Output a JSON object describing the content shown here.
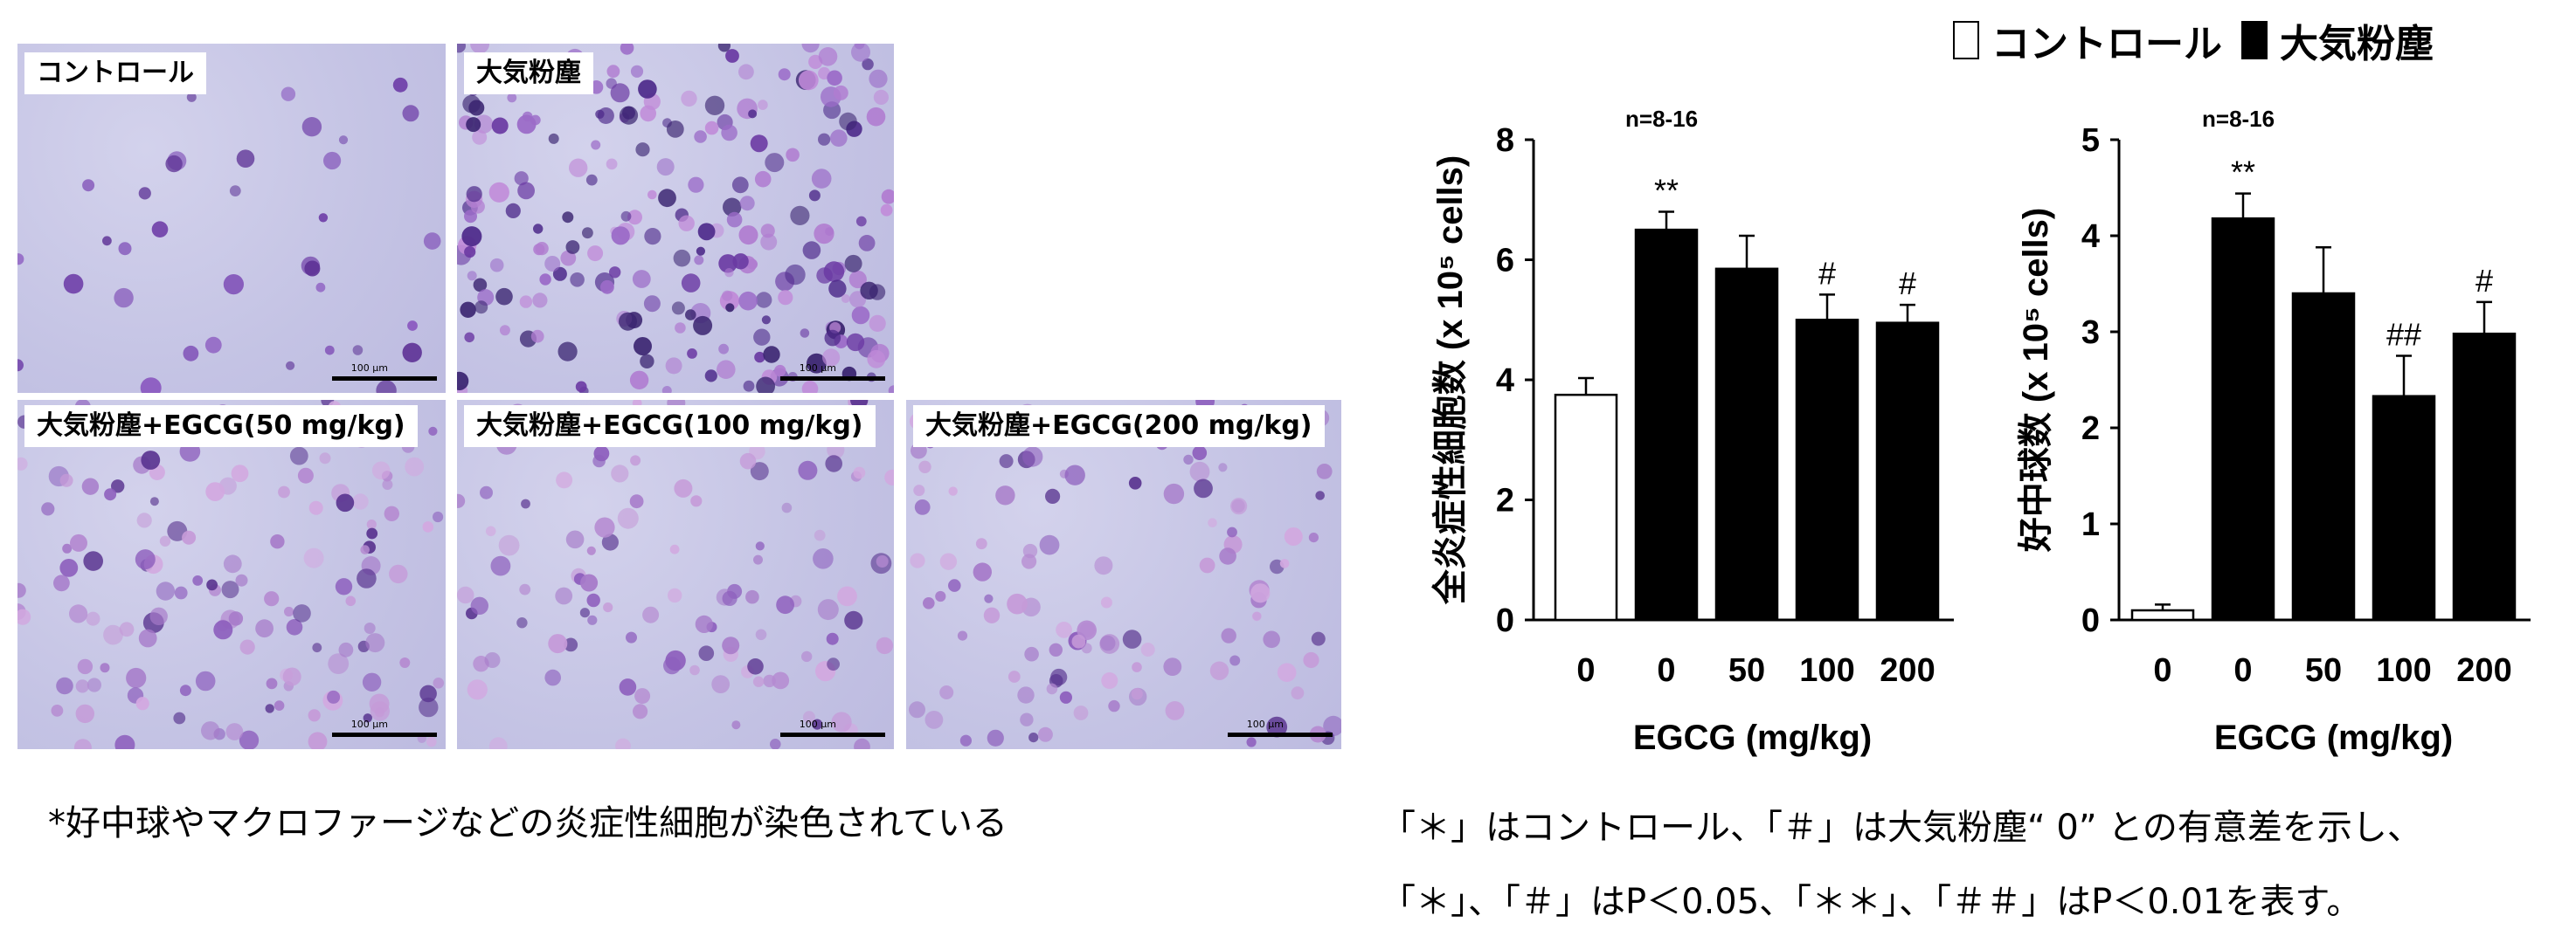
{
  "legend": [
    {
      "label": "コントロール",
      "color": "#ffffff"
    },
    {
      "label": "大気粉塵",
      "color": "#000000"
    }
  ],
  "panels": [
    {
      "label": "コントロール",
      "scale": "100 μm"
    },
    {
      "label": "大気粉塵",
      "scale": "100 μm"
    },
    {
      "label": "大気粉塵+EGCG(50 mg/kg)",
      "scale": "100 μm"
    },
    {
      "label": "大気粉塵+EGCG(100 mg/kg)",
      "scale": "100 μm"
    },
    {
      "label": "大気粉塵+EGCG(200 mg/kg)",
      "scale": "100 μm"
    }
  ],
  "footnote_left": "*好中球やマクロファージなどの炎症性細胞が染色されている",
  "footnote_right": [
    "「＊」はコントロール、「＃」は大気粉塵“ 0” との有意差を示し、",
    "「＊」、「＃」はP＜0.05、「＊＊」、「＃＃」はP＜0.01を表す。"
  ],
  "chart_data": [
    {
      "type": "bar",
      "note": "n=8-16",
      "ylabel": "全炎症性細胞数 (x 10⁵ cells)",
      "xlabel": "EGCG (mg/kg)",
      "categories": [
        "0",
        "0",
        "50",
        "100",
        "200"
      ],
      "groups": [
        "コントロール",
        "大気粉塵",
        "大気粉塵",
        "大気粉塵",
        "大気粉塵"
      ],
      "values": [
        3.75,
        6.5,
        5.85,
        5.0,
        4.95
      ],
      "errors": [
        0.28,
        0.3,
        0.55,
        0.42,
        0.3
      ],
      "significance": [
        "",
        "**",
        "",
        "#",
        "#"
      ],
      "ylim": [
        0,
        8
      ],
      "yticks": [
        0,
        2,
        4,
        6,
        8
      ]
    },
    {
      "type": "bar",
      "note": "n=8-16",
      "ylabel": "好中球数 (x 10⁵ cells)",
      "xlabel": "EGCG (mg/kg)",
      "categories": [
        "0",
        "0",
        "50",
        "100",
        "200"
      ],
      "groups": [
        "コントロール",
        "大気粉塵",
        "大気粉塵",
        "大気粉塵",
        "大気粉塵"
      ],
      "values": [
        0.1,
        4.18,
        3.4,
        2.33,
        2.98
      ],
      "errors": [
        0.06,
        0.26,
        0.48,
        0.42,
        0.33
      ],
      "significance": [
        "",
        "**",
        "",
        "##",
        "#"
      ],
      "ylim": [
        0,
        5
      ],
      "yticks": [
        0,
        1,
        2,
        3,
        4,
        5
      ]
    }
  ]
}
